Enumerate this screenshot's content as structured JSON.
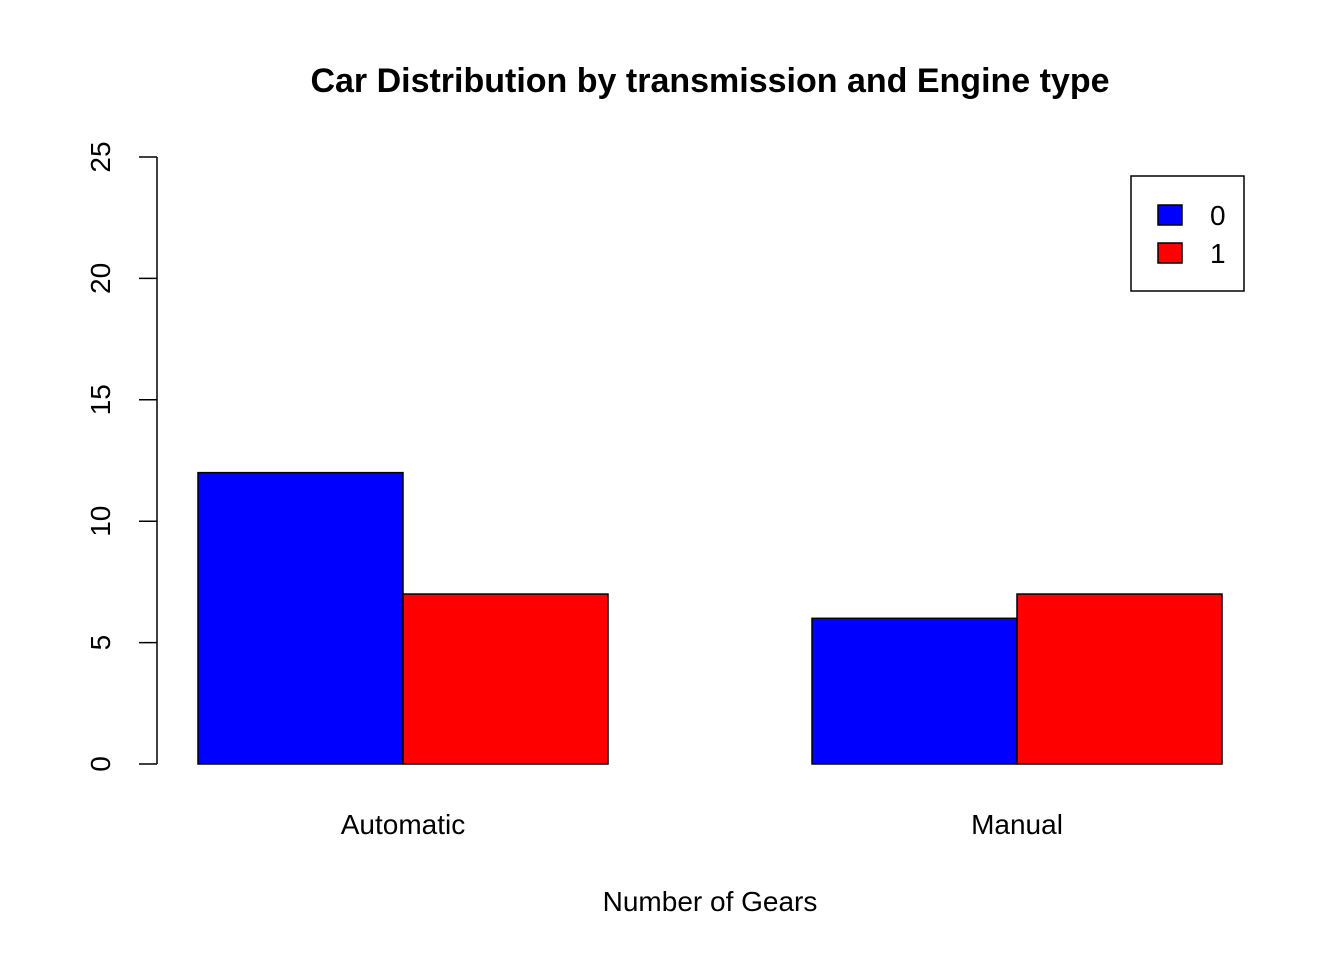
{
  "chart_data": {
    "type": "bar",
    "title": "Car Distribution by transmission and Engine type",
    "xlabel": "Number of Gears",
    "ylabel": "",
    "categories": [
      "Automatic",
      "Manual"
    ],
    "series": [
      {
        "name": "0",
        "values": [
          12,
          6
        ],
        "color": "#0000ff"
      },
      {
        "name": "1",
        "values": [
          7,
          7
        ],
        "color": "#ff0000"
      }
    ],
    "ylim": [
      0,
      25
    ],
    "yticks": [
      0,
      5,
      10,
      15,
      20,
      25
    ],
    "grid": false,
    "legend_position": "top-right"
  }
}
